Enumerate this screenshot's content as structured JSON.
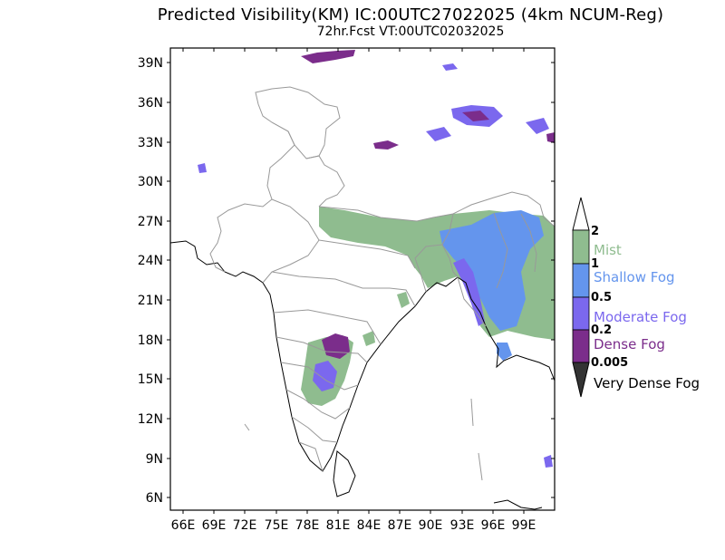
{
  "header": {
    "title": "Predicted Visibility(KM) IC:00UTC27022025 (4km NCUM-Reg)",
    "subtitle": "72hr.Fcst VT:00UTC02032025"
  },
  "axes": {
    "lat_labels": [
      "39N",
      "36N",
      "33N",
      "30N",
      "27N",
      "24N",
      "21N",
      "18N",
      "15N",
      "12N",
      "9N",
      "6N"
    ],
    "lon_labels": [
      "66E",
      "69E",
      "72E",
      "75E",
      "78E",
      "81E",
      "84E",
      "87E",
      "90E",
      "93E",
      "96E",
      "99E"
    ]
  },
  "legend": {
    "boundaries": [
      "2",
      "1",
      "0.5",
      "0.2",
      "0.005"
    ],
    "categories": [
      {
        "label": "Mist",
        "color": "#8fbc8f"
      },
      {
        "label": "Shallow Fog",
        "color": "#6495ed"
      },
      {
        "label": "Moderate Fog",
        "color": "#7b68ee"
      },
      {
        "label": "Dense Fog",
        "color": "#7b2d8b"
      },
      {
        "label": "Very Dense Fog",
        "color": "#333333"
      }
    ]
  },
  "colors": {
    "boundary": "#999999",
    "coast": "#000000"
  }
}
